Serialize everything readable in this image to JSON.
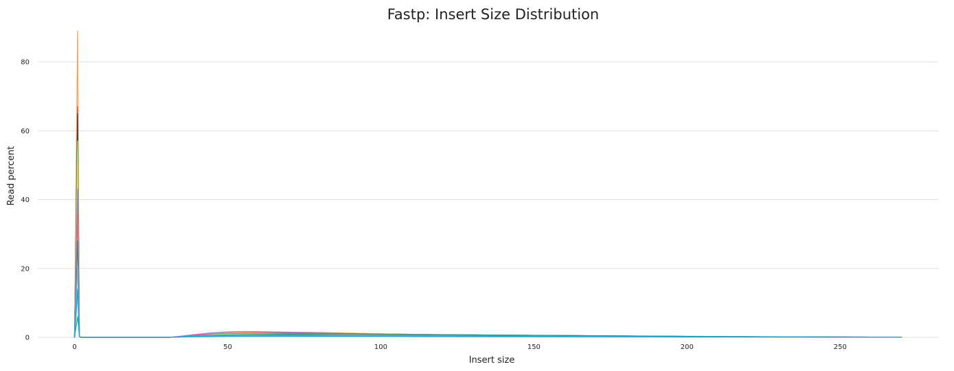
{
  "chart_data": {
    "type": "line",
    "title": "Fastp: Insert Size Distribution",
    "xlabel": "Insert size",
    "ylabel": "Read percent",
    "xlim": [
      -12,
      282
    ],
    "ylim": [
      0,
      94
    ],
    "x_ticks": [
      0,
      50,
      100,
      150,
      200,
      250
    ],
    "y_ticks": [
      0,
      20,
      40,
      60,
      80
    ],
    "grid": "horizontal",
    "legend": "none",
    "series": [
      {
        "color": "#f7a35c",
        "points": [
          [
            0,
            0
          ],
          [
            1,
            89
          ],
          [
            1.6,
            0.3
          ],
          [
            2,
            0
          ],
          [
            31,
            0
          ],
          [
            35,
            0.25
          ],
          [
            40,
            0.55
          ],
          [
            45,
            0.75
          ],
          [
            50,
            0.85
          ],
          [
            55,
            0.9
          ],
          [
            60,
            0.9
          ],
          [
            70,
            0.85
          ],
          [
            80,
            0.8
          ],
          [
            90,
            0.7
          ],
          [
            100,
            0.6
          ],
          [
            120,
            0.5
          ],
          [
            150,
            0.4
          ],
          [
            200,
            0.2
          ],
          [
            250,
            0.08
          ],
          [
            270,
            0.05
          ]
        ]
      },
      {
        "color": "#e4572e",
        "points": [
          [
            0,
            0
          ],
          [
            1,
            67
          ],
          [
            1.6,
            0.3
          ],
          [
            2,
            0
          ],
          [
            31,
            0
          ],
          [
            35,
            0.3
          ],
          [
            40,
            0.7
          ],
          [
            45,
            1.0
          ],
          [
            50,
            1.2
          ],
          [
            55,
            1.3
          ],
          [
            60,
            1.3
          ],
          [
            70,
            1.2
          ],
          [
            80,
            1.1
          ],
          [
            90,
            0.95
          ],
          [
            100,
            0.85
          ],
          [
            120,
            0.7
          ],
          [
            150,
            0.55
          ],
          [
            200,
            0.25
          ],
          [
            250,
            0.1
          ],
          [
            270,
            0.05
          ]
        ]
      },
      {
        "color": "#434348",
        "points": [
          [
            0,
            0
          ],
          [
            1,
            65
          ],
          [
            1.6,
            0.3
          ],
          [
            2,
            0
          ],
          [
            31,
            0
          ],
          [
            35,
            0.3
          ],
          [
            40,
            0.8
          ],
          [
            45,
            1.1
          ],
          [
            50,
            1.3
          ],
          [
            55,
            1.35
          ],
          [
            60,
            1.35
          ],
          [
            70,
            1.25
          ],
          [
            80,
            1.2
          ],
          [
            90,
            1.1
          ],
          [
            100,
            1.0
          ],
          [
            120,
            0.75
          ],
          [
            150,
            0.55
          ],
          [
            200,
            0.25
          ],
          [
            250,
            0.1
          ],
          [
            270,
            0.05
          ]
        ]
      },
      {
        "color": "#90ed7d",
        "points": [
          [
            0,
            0
          ],
          [
            1,
            57
          ],
          [
            1.6,
            0.3
          ],
          [
            2,
            0
          ],
          [
            31,
            0
          ],
          [
            35,
            0.25
          ],
          [
            40,
            0.6
          ],
          [
            45,
            0.85
          ],
          [
            50,
            1.0
          ],
          [
            55,
            1.05
          ],
          [
            60,
            1.1
          ],
          [
            70,
            1.05
          ],
          [
            80,
            1.0
          ],
          [
            90,
            0.9
          ],
          [
            100,
            0.8
          ],
          [
            120,
            0.65
          ],
          [
            150,
            0.5
          ],
          [
            200,
            0.22
          ],
          [
            250,
            0.08
          ],
          [
            270,
            0.04
          ]
        ]
      },
      {
        "color": "#e4d354",
        "points": [
          [
            0,
            0
          ],
          [
            1,
            50
          ],
          [
            1.6,
            0.3
          ],
          [
            2,
            0
          ],
          [
            31,
            0
          ],
          [
            35,
            0.3
          ],
          [
            40,
            0.75
          ],
          [
            45,
            1.1
          ],
          [
            50,
            1.3
          ],
          [
            55,
            1.45
          ],
          [
            60,
            1.5
          ],
          [
            70,
            1.5
          ],
          [
            80,
            1.45
          ],
          [
            90,
            1.3
          ],
          [
            100,
            1.0
          ],
          [
            120,
            0.75
          ],
          [
            150,
            0.55
          ],
          [
            200,
            0.25
          ],
          [
            250,
            0.1
          ],
          [
            270,
            0.05
          ]
        ]
      },
      {
        "color": "#8085e9",
        "points": [
          [
            0,
            0
          ],
          [
            1,
            43
          ],
          [
            1.6,
            0.3
          ],
          [
            2,
            0
          ],
          [
            31,
            0
          ],
          [
            35,
            0.35
          ],
          [
            40,
            0.9
          ],
          [
            45,
            1.3
          ],
          [
            50,
            1.6
          ],
          [
            55,
            1.7
          ],
          [
            60,
            1.65
          ],
          [
            70,
            1.5
          ],
          [
            80,
            1.3
          ],
          [
            90,
            1.1
          ],
          [
            100,
            0.95
          ],
          [
            120,
            0.75
          ],
          [
            150,
            0.55
          ],
          [
            200,
            0.25
          ],
          [
            250,
            0.1
          ],
          [
            270,
            0.05
          ]
        ]
      },
      {
        "color": "#f15c80",
        "points": [
          [
            0,
            0
          ],
          [
            1,
            36
          ],
          [
            1.6,
            0.3
          ],
          [
            2,
            0
          ],
          [
            31,
            0
          ],
          [
            35,
            0.3
          ],
          [
            40,
            0.7
          ],
          [
            45,
            1.0
          ],
          [
            50,
            1.2
          ],
          [
            55,
            1.25
          ],
          [
            60,
            1.25
          ],
          [
            70,
            1.15
          ],
          [
            80,
            1.05
          ],
          [
            90,
            0.95
          ],
          [
            100,
            0.85
          ],
          [
            120,
            0.7
          ],
          [
            150,
            0.55
          ],
          [
            200,
            0.25
          ],
          [
            250,
            0.1
          ],
          [
            270,
            0.05
          ]
        ]
      },
      {
        "color": "#2b908f",
        "points": [
          [
            0,
            0
          ],
          [
            1,
            28
          ],
          [
            1.6,
            0.3
          ],
          [
            2,
            0
          ],
          [
            31,
            0
          ],
          [
            35,
            0.2
          ],
          [
            40,
            0.45
          ],
          [
            45,
            0.6
          ],
          [
            50,
            0.7
          ],
          [
            55,
            0.75
          ],
          [
            60,
            0.8
          ],
          [
            70,
            0.85
          ],
          [
            80,
            0.9
          ],
          [
            90,
            0.95
          ],
          [
            100,
            0.9
          ],
          [
            120,
            0.75
          ],
          [
            150,
            0.6
          ],
          [
            200,
            0.3
          ],
          [
            250,
            0.1
          ],
          [
            270,
            0.05
          ]
        ]
      },
      {
        "color": "#7cb5ec",
        "points": [
          [
            0,
            0
          ],
          [
            1,
            20
          ],
          [
            1.6,
            0.3
          ],
          [
            2,
            0
          ],
          [
            31,
            0
          ],
          [
            35,
            0.2
          ],
          [
            40,
            0.4
          ],
          [
            45,
            0.55
          ],
          [
            50,
            0.6
          ],
          [
            55,
            0.65
          ],
          [
            60,
            0.65
          ],
          [
            70,
            0.6
          ],
          [
            80,
            0.55
          ],
          [
            90,
            0.5
          ],
          [
            100,
            0.45
          ],
          [
            120,
            0.4
          ],
          [
            150,
            0.3
          ],
          [
            200,
            0.15
          ],
          [
            250,
            0.05
          ],
          [
            270,
            0.03
          ]
        ]
      },
      {
        "color": "#91e8e1",
        "points": [
          [
            0,
            0
          ],
          [
            1,
            12
          ],
          [
            1.6,
            0.3
          ],
          [
            2,
            0
          ],
          [
            31,
            0
          ],
          [
            35,
            0.15
          ],
          [
            40,
            0.3
          ],
          [
            45,
            0.4
          ],
          [
            50,
            0.45
          ],
          [
            55,
            0.5
          ],
          [
            60,
            0.5
          ],
          [
            70,
            0.5
          ],
          [
            80,
            0.45
          ],
          [
            90,
            0.45
          ],
          [
            100,
            0.4
          ],
          [
            120,
            0.35
          ],
          [
            150,
            0.3
          ],
          [
            200,
            0.15
          ],
          [
            250,
            0.05
          ],
          [
            270,
            0.03
          ]
        ]
      },
      {
        "color": "#35b779",
        "points": [
          [
            0,
            0
          ],
          [
            1,
            6
          ],
          [
            1.6,
            0.3
          ],
          [
            2,
            0
          ],
          [
            31,
            0
          ],
          [
            35,
            0.15
          ],
          [
            40,
            0.35
          ],
          [
            45,
            0.45
          ],
          [
            50,
            0.5
          ],
          [
            55,
            0.55
          ],
          [
            60,
            0.55
          ],
          [
            70,
            0.55
          ],
          [
            80,
            0.5
          ],
          [
            90,
            0.45
          ],
          [
            100,
            0.45
          ],
          [
            120,
            0.4
          ],
          [
            150,
            0.3
          ],
          [
            200,
            0.15
          ],
          [
            250,
            0.05
          ],
          [
            270,
            0.03
          ]
        ]
      },
      {
        "color": "#1f9edb",
        "points": [
          [
            0,
            0
          ],
          [
            1,
            14
          ],
          [
            1.6,
            0.3
          ],
          [
            2,
            0
          ],
          [
            31,
            0
          ],
          [
            35,
            0.1
          ],
          [
            40,
            0.2
          ],
          [
            45,
            0.25
          ],
          [
            50,
            0.3
          ],
          [
            55,
            0.3
          ],
          [
            60,
            0.3
          ],
          [
            70,
            0.3
          ],
          [
            80,
            0.3
          ],
          [
            90,
            0.3
          ],
          [
            100,
            0.3
          ],
          [
            120,
            0.25
          ],
          [
            150,
            0.2
          ],
          [
            200,
            0.1
          ],
          [
            250,
            0.05
          ],
          [
            270,
            0.03
          ]
        ]
      }
    ]
  }
}
